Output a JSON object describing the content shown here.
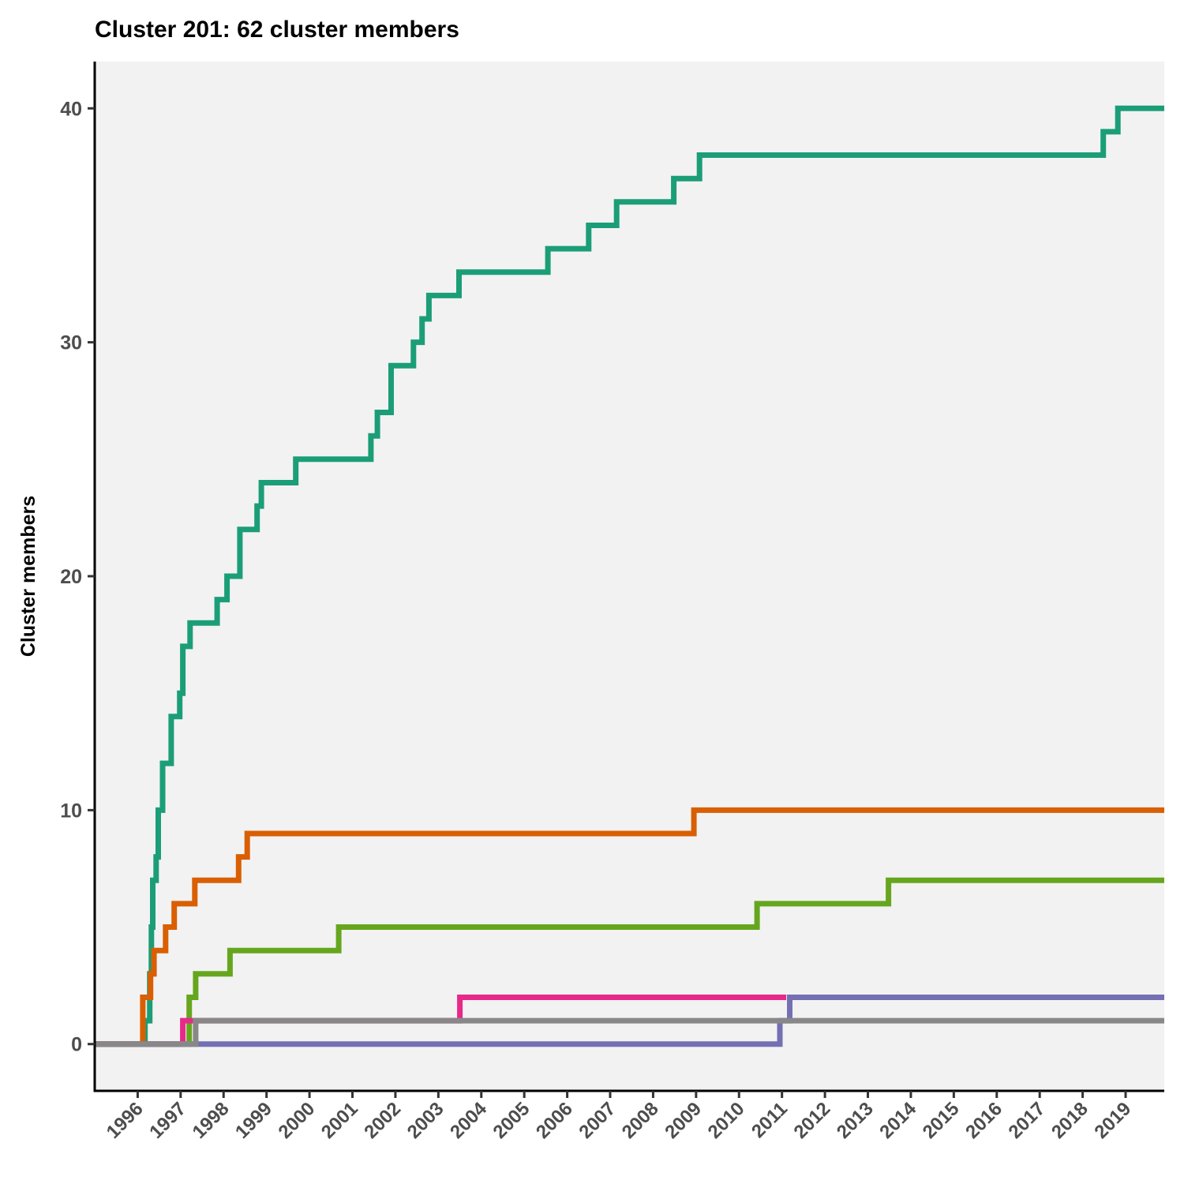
{
  "chart_data": {
    "type": "line",
    "step": true,
    "title": "Cluster 201: 62 cluster members",
    "xlabel": "",
    "ylabel": "Cluster members",
    "xlim": [
      1995.0,
      2019.9
    ],
    "ylim": [
      -2,
      42
    ],
    "yticks": [
      0,
      10,
      20,
      30,
      40
    ],
    "xticks": [
      "1996",
      "1997",
      "1998",
      "1999",
      "2000",
      "2001",
      "2002",
      "2003",
      "2004",
      "2005",
      "2006",
      "2007",
      "2008",
      "2009",
      "2010",
      "2011",
      "2012",
      "2013",
      "2014",
      "2015",
      "2016",
      "2017",
      "2018",
      "2019"
    ],
    "grid": false,
    "legend": "none",
    "background": "#f2f2f2",
    "series": [
      {
        "color": "#1b9e77",
        "points": [
          [
            1995.0,
            0
          ],
          [
            1996.17,
            0
          ],
          [
            1996.17,
            1
          ],
          [
            1996.28,
            1
          ],
          [
            1996.28,
            3
          ],
          [
            1996.32,
            3
          ],
          [
            1996.32,
            5
          ],
          [
            1996.35,
            5
          ],
          [
            1996.35,
            7
          ],
          [
            1996.43,
            7
          ],
          [
            1996.43,
            8
          ],
          [
            1996.48,
            8
          ],
          [
            1996.48,
            10
          ],
          [
            1996.58,
            10
          ],
          [
            1996.58,
            12
          ],
          [
            1996.78,
            12
          ],
          [
            1996.78,
            14
          ],
          [
            1996.98,
            14
          ],
          [
            1996.98,
            15
          ],
          [
            1997.05,
            15
          ],
          [
            1997.05,
            17
          ],
          [
            1997.22,
            17
          ],
          [
            1997.22,
            18
          ],
          [
            1997.85,
            18
          ],
          [
            1997.85,
            19
          ],
          [
            1998.08,
            19
          ],
          [
            1998.08,
            20
          ],
          [
            1998.38,
            20
          ],
          [
            1998.38,
            22
          ],
          [
            1998.78,
            22
          ],
          [
            1998.78,
            23
          ],
          [
            1998.88,
            23
          ],
          [
            1998.88,
            24
          ],
          [
            1999.68,
            24
          ],
          [
            1999.68,
            25
          ],
          [
            2001.43,
            25
          ],
          [
            2001.43,
            26
          ],
          [
            2001.58,
            26
          ],
          [
            2001.58,
            27
          ],
          [
            2001.9,
            27
          ],
          [
            2001.9,
            29
          ],
          [
            2002.42,
            29
          ],
          [
            2002.42,
            30
          ],
          [
            2002.62,
            30
          ],
          [
            2002.62,
            31
          ],
          [
            2002.78,
            31
          ],
          [
            2002.78,
            32
          ],
          [
            2003.48,
            32
          ],
          [
            2003.48,
            33
          ],
          [
            2005.55,
            33
          ],
          [
            2005.55,
            34
          ],
          [
            2006.5,
            34
          ],
          [
            2006.5,
            35
          ],
          [
            2007.15,
            35
          ],
          [
            2007.15,
            36
          ],
          [
            2008.48,
            36
          ],
          [
            2008.48,
            37
          ],
          [
            2009.08,
            37
          ],
          [
            2009.08,
            38
          ],
          [
            2018.48,
            38
          ],
          [
            2018.48,
            39
          ],
          [
            2018.82,
            39
          ],
          [
            2018.82,
            40
          ],
          [
            2019.9,
            40
          ]
        ]
      },
      {
        "color": "#d95f02",
        "points": [
          [
            1995.0,
            0
          ],
          [
            1996.12,
            0
          ],
          [
            1996.12,
            2
          ],
          [
            1996.3,
            2
          ],
          [
            1996.3,
            3
          ],
          [
            1996.38,
            3
          ],
          [
            1996.38,
            4
          ],
          [
            1996.65,
            4
          ],
          [
            1996.65,
            5
          ],
          [
            1996.85,
            5
          ],
          [
            1996.85,
            6
          ],
          [
            1997.33,
            6
          ],
          [
            1997.33,
            7
          ],
          [
            1998.35,
            7
          ],
          [
            1998.35,
            8
          ],
          [
            1998.55,
            8
          ],
          [
            1998.55,
            9
          ],
          [
            2008.95,
            9
          ],
          [
            2008.95,
            10
          ],
          [
            2019.9,
            10
          ]
        ]
      },
      {
        "color": "#66a61e",
        "points": [
          [
            1995.0,
            0
          ],
          [
            1997.2,
            0
          ],
          [
            1997.2,
            2
          ],
          [
            1997.35,
            2
          ],
          [
            1997.35,
            3
          ],
          [
            1998.15,
            3
          ],
          [
            1998.15,
            4
          ],
          [
            2000.68,
            4
          ],
          [
            2000.68,
            5
          ],
          [
            2010.42,
            5
          ],
          [
            2010.42,
            6
          ],
          [
            2013.48,
            6
          ],
          [
            2013.48,
            7
          ],
          [
            2019.9,
            7
          ]
        ]
      },
      {
        "color": "#e7298a",
        "points": [
          [
            1995.0,
            0
          ],
          [
            1997.05,
            0
          ],
          [
            1997.05,
            1
          ],
          [
            2003.5,
            1
          ],
          [
            2003.5,
            2
          ],
          [
            2011.1,
            2
          ]
        ]
      },
      {
        "color": "#7570b3",
        "points": [
          [
            1995.0,
            0
          ],
          [
            2010.95,
            0
          ],
          [
            2010.95,
            1
          ],
          [
            2011.18,
            1
          ],
          [
            2011.18,
            2
          ],
          [
            2019.9,
            2
          ]
        ]
      },
      {
        "color": "#888888",
        "points": [
          [
            1995.0,
            0
          ],
          [
            1997.35,
            0
          ],
          [
            1997.35,
            1
          ],
          [
            2019.9,
            1
          ]
        ]
      }
    ]
  }
}
